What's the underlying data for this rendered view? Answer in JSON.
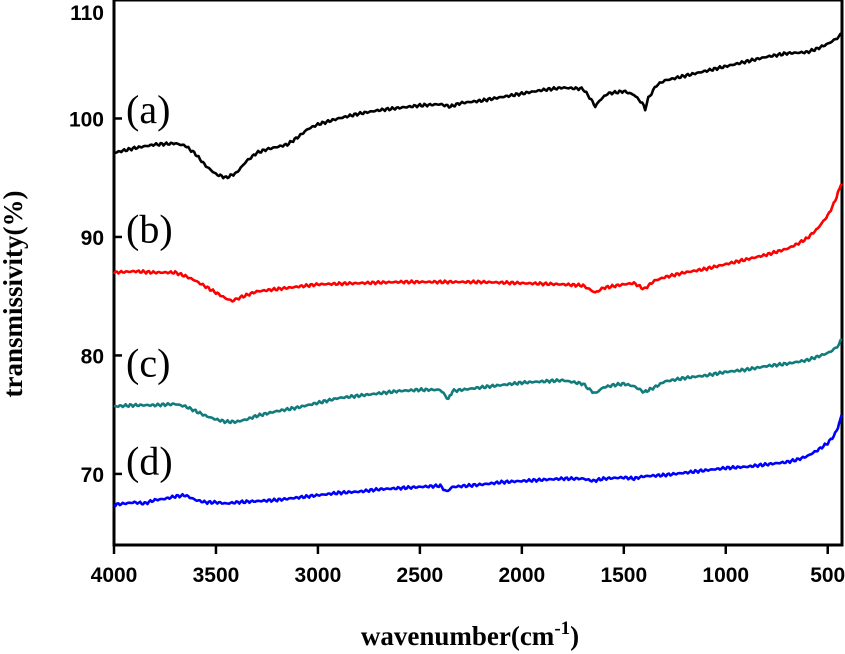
{
  "chart_data": {
    "type": "line",
    "xlabel": "wavenumber(cm",
    "xlabel_sup": "-1",
    "xlabel_close": ")",
    "ylabel": "transmissivity(%)",
    "xlim": [
      4000,
      430
    ],
    "ylim": [
      64,
      110
    ],
    "x_reversed": true,
    "x_ticks": [
      "4000",
      "3500",
      "3000",
      "2500",
      "2000",
      "1500",
      "1000",
      "500"
    ],
    "x_tick_values": [
      4000,
      3500,
      3000,
      2500,
      2000,
      1500,
      1000,
      500
    ],
    "y_ticks": [
      "70",
      "80",
      "90",
      "100",
      "110"
    ],
    "y_tick_values": [
      70,
      80,
      90,
      100,
      110
    ],
    "grid": false,
    "series": [
      {
        "name": "(a)",
        "color": "#000000",
        "points": [
          [
            4000,
            97.1
          ],
          [
            3900,
            97.5
          ],
          [
            3800,
            97.8
          ],
          [
            3700,
            97.9
          ],
          [
            3650,
            97.7
          ],
          [
            3600,
            97.0
          ],
          [
            3550,
            96.0
          ],
          [
            3500,
            95.3
          ],
          [
            3450,
            95.0
          ],
          [
            3400,
            95.4
          ],
          [
            3350,
            96.4
          ],
          [
            3300,
            97.1
          ],
          [
            3250,
            97.4
          ],
          [
            3200,
            97.6
          ],
          [
            3150,
            97.8
          ],
          [
            3100,
            98.4
          ],
          [
            3050,
            99.1
          ],
          [
            3000,
            99.5
          ],
          [
            2900,
            100.0
          ],
          [
            2800,
            100.4
          ],
          [
            2700,
            100.7
          ],
          [
            2600,
            100.9
          ],
          [
            2500,
            101.1
          ],
          [
            2400,
            101.2
          ],
          [
            2350,
            101.0
          ],
          [
            2300,
            101.3
          ],
          [
            2200,
            101.5
          ],
          [
            2100,
            101.8
          ],
          [
            2000,
            102.1
          ],
          [
            1900,
            102.4
          ],
          [
            1800,
            102.6
          ],
          [
            1700,
            102.5
          ],
          [
            1660,
            101.6
          ],
          [
            1640,
            101.0
          ],
          [
            1620,
            101.5
          ],
          [
            1580,
            102.1
          ],
          [
            1500,
            102.3
          ],
          [
            1450,
            102.0
          ],
          [
            1410,
            101.3
          ],
          [
            1395,
            100.8
          ],
          [
            1380,
            101.7
          ],
          [
            1340,
            102.8
          ],
          [
            1300,
            103.2
          ],
          [
            1200,
            103.6
          ],
          [
            1100,
            104.0
          ],
          [
            1000,
            104.4
          ],
          [
            900,
            104.8
          ],
          [
            800,
            105.2
          ],
          [
            700,
            105.5
          ],
          [
            600,
            105.6
          ],
          [
            550,
            105.9
          ],
          [
            500,
            106.3
          ],
          [
            470,
            106.6
          ],
          [
            445,
            106.9
          ],
          [
            432,
            107.2
          ]
        ]
      },
      {
        "name": "(b)",
        "color": "#ff0000",
        "points": [
          [
            4000,
            87.0
          ],
          [
            3900,
            87.1
          ],
          [
            3800,
            87.0
          ],
          [
            3700,
            87.0
          ],
          [
            3650,
            86.7
          ],
          [
            3600,
            86.3
          ],
          [
            3550,
            85.8
          ],
          [
            3500,
            85.3
          ],
          [
            3450,
            84.8
          ],
          [
            3420,
            84.6
          ],
          [
            3380,
            84.9
          ],
          [
            3300,
            85.4
          ],
          [
            3200,
            85.6
          ],
          [
            3100,
            85.8
          ],
          [
            3000,
            86.0
          ],
          [
            2800,
            86.1
          ],
          [
            2600,
            86.2
          ],
          [
            2400,
            86.2
          ],
          [
            2200,
            86.2
          ],
          [
            2000,
            86.1
          ],
          [
            1800,
            86.0
          ],
          [
            1700,
            85.9
          ],
          [
            1640,
            85.3
          ],
          [
            1600,
            85.7
          ],
          [
            1500,
            86.0
          ],
          [
            1450,
            86.1
          ],
          [
            1400,
            85.6
          ],
          [
            1350,
            86.3
          ],
          [
            1300,
            86.6
          ],
          [
            1200,
            87.0
          ],
          [
            1100,
            87.3
          ],
          [
            1000,
            87.7
          ],
          [
            900,
            88.1
          ],
          [
            800,
            88.5
          ],
          [
            700,
            89.0
          ],
          [
            650,
            89.4
          ],
          [
            600,
            89.9
          ],
          [
            550,
            90.7
          ],
          [
            500,
            91.8
          ],
          [
            470,
            92.8
          ],
          [
            450,
            93.7
          ],
          [
            432,
            94.5
          ]
        ]
      },
      {
        "name": "(c)",
        "color": "#127c7c",
        "points": [
          [
            4000,
            75.7
          ],
          [
            3900,
            75.8
          ],
          [
            3800,
            75.8
          ],
          [
            3700,
            75.9
          ],
          [
            3650,
            75.7
          ],
          [
            3600,
            75.3
          ],
          [
            3550,
            74.9
          ],
          [
            3500,
            74.6
          ],
          [
            3450,
            74.4
          ],
          [
            3400,
            74.4
          ],
          [
            3350,
            74.6
          ],
          [
            3300,
            74.9
          ],
          [
            3200,
            75.3
          ],
          [
            3100,
            75.6
          ],
          [
            3000,
            76.0
          ],
          [
            2900,
            76.4
          ],
          [
            2800,
            76.6
          ],
          [
            2700,
            76.8
          ],
          [
            2600,
            77.0
          ],
          [
            2500,
            77.1
          ],
          [
            2400,
            77.1
          ],
          [
            2360,
            76.3
          ],
          [
            2340,
            77.0
          ],
          [
            2200,
            77.3
          ],
          [
            2100,
            77.5
          ],
          [
            2000,
            77.7
          ],
          [
            1900,
            77.8
          ],
          [
            1800,
            77.9
          ],
          [
            1700,
            77.6
          ],
          [
            1660,
            77.0
          ],
          [
            1640,
            76.8
          ],
          [
            1600,
            77.3
          ],
          [
            1550,
            77.5
          ],
          [
            1500,
            77.6
          ],
          [
            1450,
            77.4
          ],
          [
            1400,
            76.9
          ],
          [
            1350,
            77.3
          ],
          [
            1300,
            77.8
          ],
          [
            1200,
            78.1
          ],
          [
            1100,
            78.3
          ],
          [
            1000,
            78.6
          ],
          [
            900,
            78.8
          ],
          [
            800,
            79.1
          ],
          [
            700,
            79.3
          ],
          [
            600,
            79.6
          ],
          [
            550,
            79.9
          ],
          [
            500,
            80.2
          ],
          [
            470,
            80.5
          ],
          [
            445,
            80.9
          ],
          [
            432,
            81.4
          ]
        ]
      },
      {
        "name": "(d)",
        "color": "#0000ff",
        "points": [
          [
            4000,
            67.4
          ],
          [
            3900,
            67.6
          ],
          [
            3850,
            67.5
          ],
          [
            3800,
            67.8
          ],
          [
            3750,
            67.9
          ],
          [
            3700,
            68.1
          ],
          [
            3650,
            68.2
          ],
          [
            3600,
            67.8
          ],
          [
            3550,
            67.6
          ],
          [
            3500,
            67.6
          ],
          [
            3450,
            67.5
          ],
          [
            3400,
            67.6
          ],
          [
            3300,
            67.7
          ],
          [
            3200,
            67.8
          ],
          [
            3100,
            68.0
          ],
          [
            3000,
            68.2
          ],
          [
            2900,
            68.4
          ],
          [
            2800,
            68.5
          ],
          [
            2700,
            68.7
          ],
          [
            2600,
            68.8
          ],
          [
            2500,
            68.9
          ],
          [
            2400,
            69.0
          ],
          [
            2370,
            68.5
          ],
          [
            2340,
            68.9
          ],
          [
            2200,
            69.1
          ],
          [
            2100,
            69.3
          ],
          [
            2000,
            69.4
          ],
          [
            1900,
            69.5
          ],
          [
            1800,
            69.6
          ],
          [
            1700,
            69.6
          ],
          [
            1650,
            69.4
          ],
          [
            1600,
            69.6
          ],
          [
            1500,
            69.7
          ],
          [
            1450,
            69.6
          ],
          [
            1400,
            69.8
          ],
          [
            1300,
            69.9
          ],
          [
            1200,
            70.1
          ],
          [
            1100,
            70.3
          ],
          [
            1000,
            70.5
          ],
          [
            900,
            70.6
          ],
          [
            800,
            70.8
          ],
          [
            700,
            71.0
          ],
          [
            650,
            71.2
          ],
          [
            600,
            71.5
          ],
          [
            550,
            72.0
          ],
          [
            500,
            72.6
          ],
          [
            470,
            73.2
          ],
          [
            450,
            73.9
          ],
          [
            438,
            74.6
          ],
          [
            432,
            75.0
          ]
        ]
      }
    ]
  }
}
